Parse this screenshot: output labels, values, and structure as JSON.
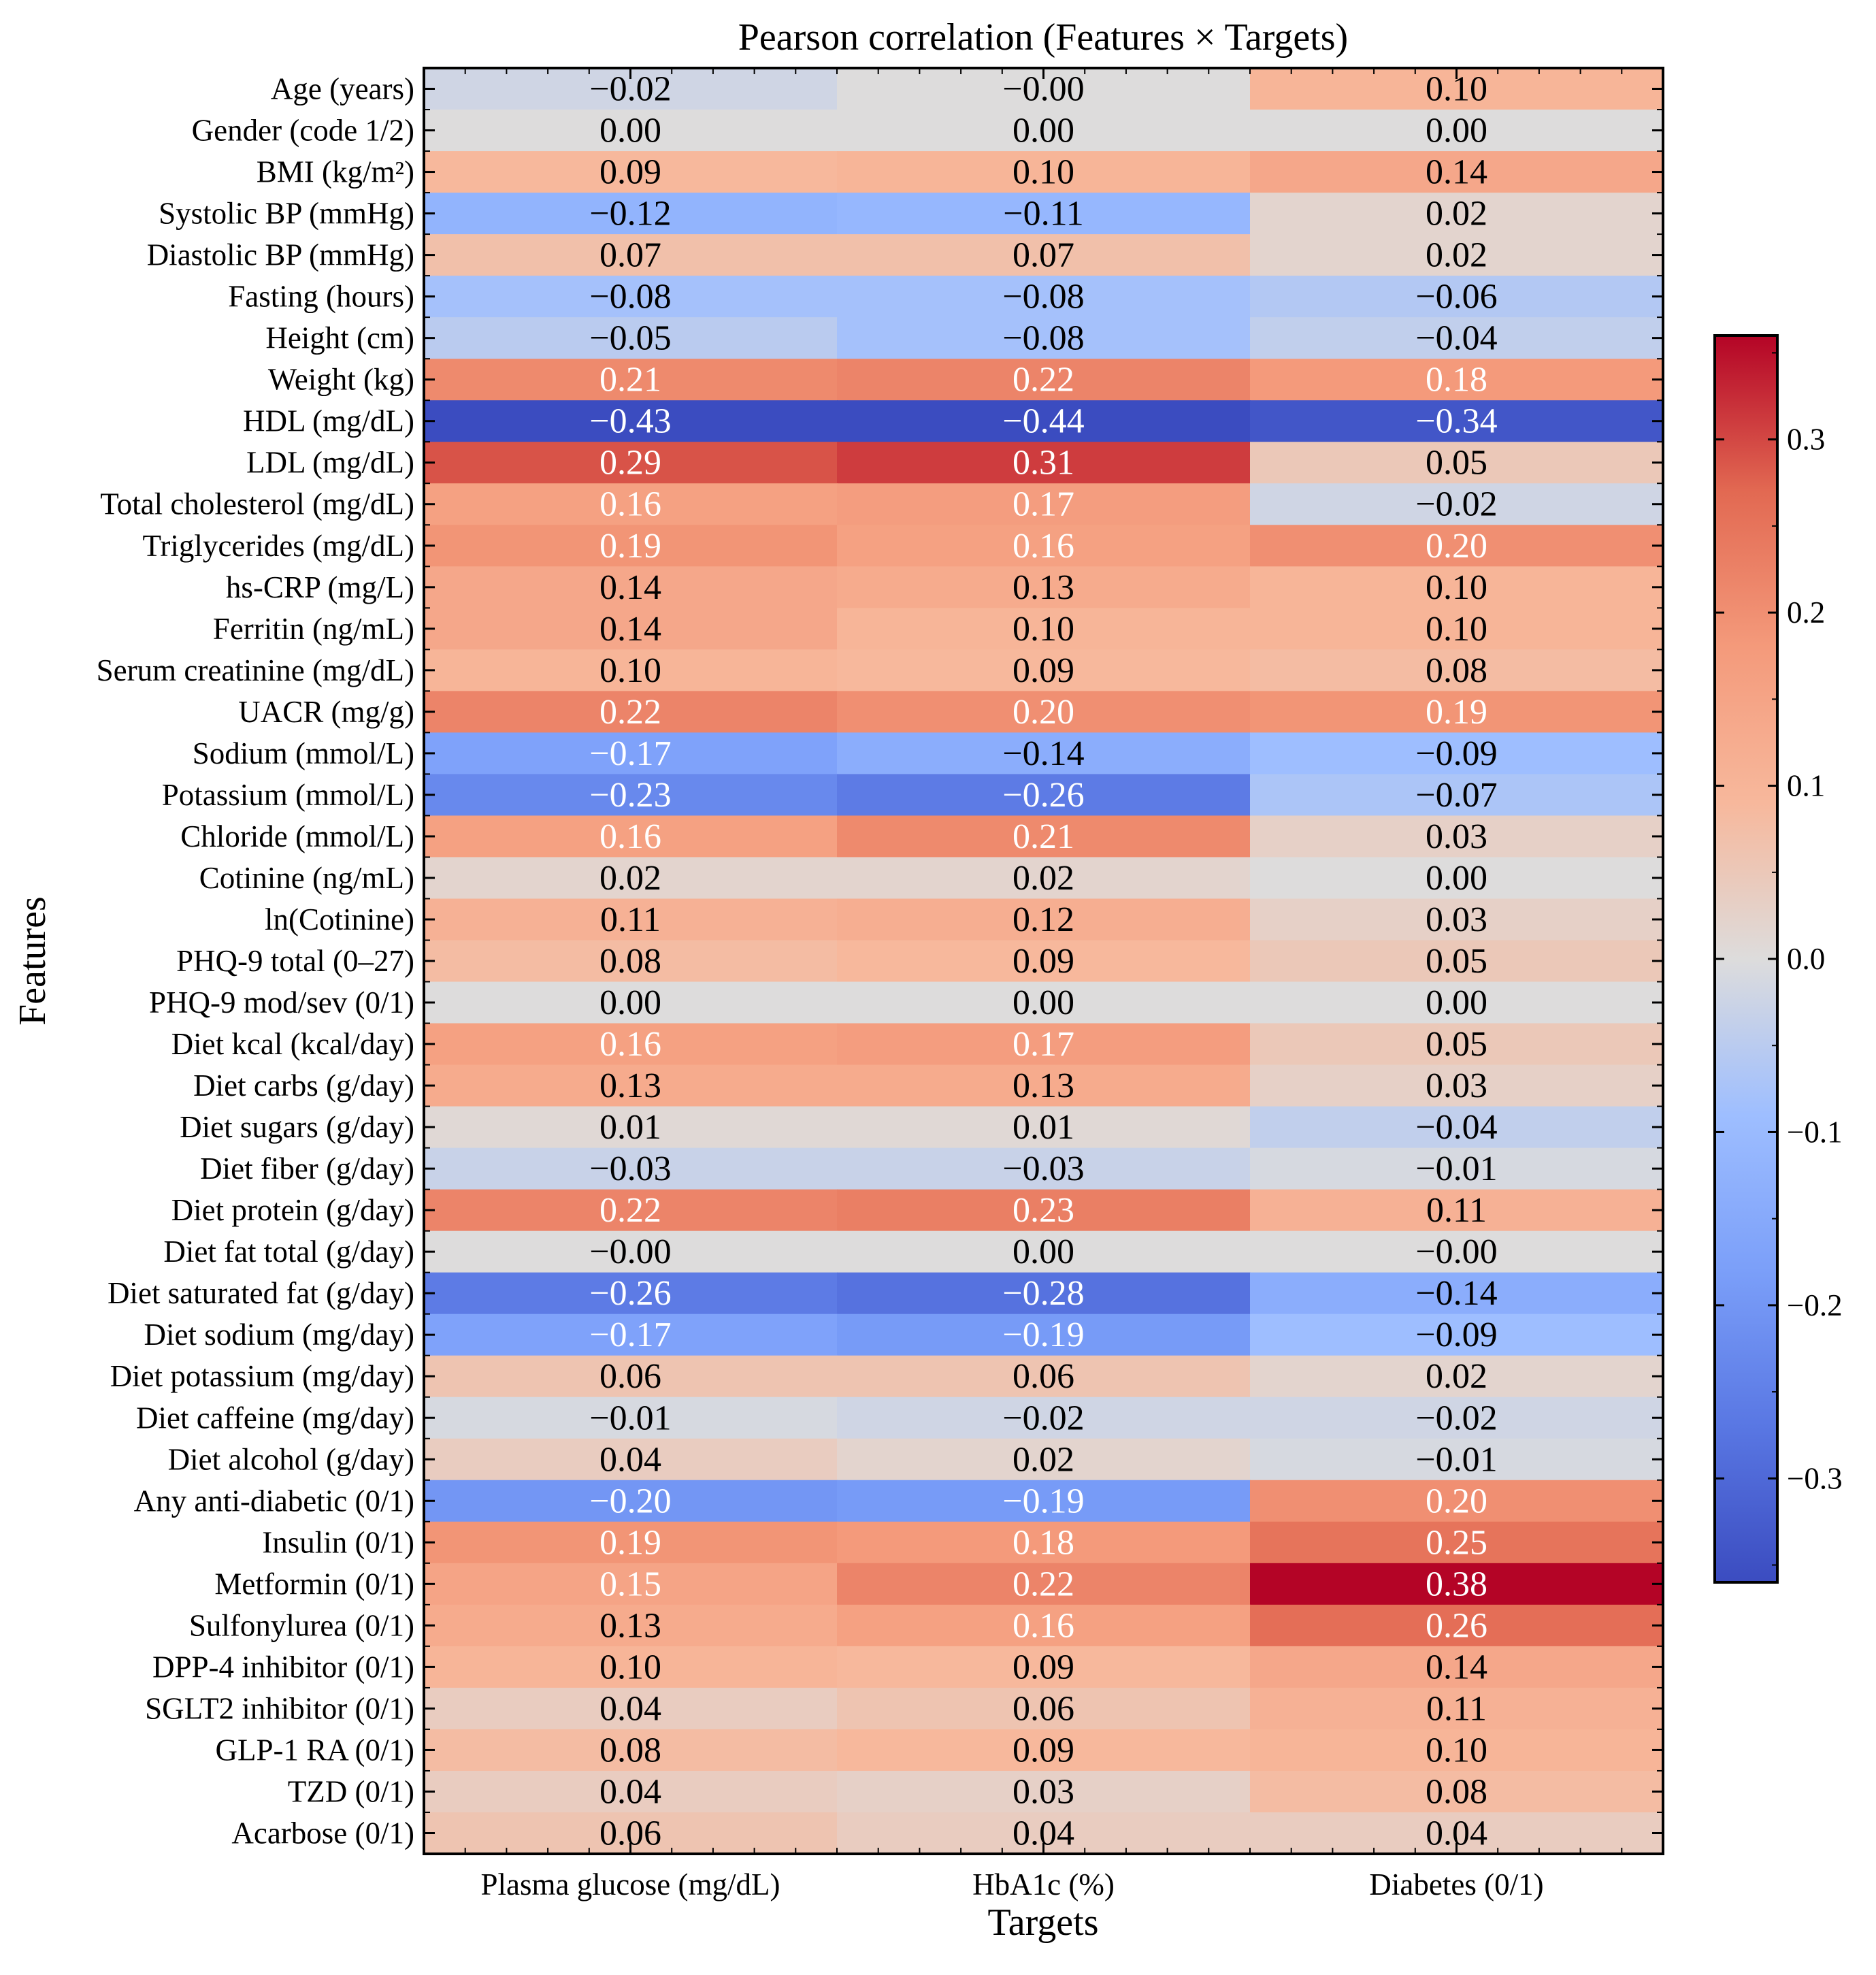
{
  "chart_data": {
    "type": "heatmap",
    "title": "Pearson correlation (Features × Targets)",
    "xlabel": "Targets",
    "ylabel": "Features",
    "x_categories": [
      "Plasma glucose (mg/dL)",
      "HbA1c (%)",
      "Diabetes (0/1)"
    ],
    "y_categories": [
      "Age (years)",
      "Gender (code 1/2)",
      "BMI (kg/m²)",
      "Systolic BP (mmHg)",
      "Diastolic BP (mmHg)",
      "Fasting (hours)",
      "Height (cm)",
      "Weight (kg)",
      "HDL (mg/dL)",
      "LDL (mg/dL)",
      "Total cholesterol (mg/dL)",
      "Triglycerides (mg/dL)",
      "hs-CRP (mg/L)",
      "Ferritin (ng/mL)",
      "Serum creatinine (mg/dL)",
      "UACR (mg/g)",
      "Sodium (mmol/L)",
      "Potassium (mmol/L)",
      "Chloride (mmol/L)",
      "Cotinine (ng/mL)",
      "ln(Cotinine)",
      "PHQ-9 total (0–27)",
      "PHQ-9 mod/sev (0/1)",
      "Diet kcal (kcal/day)",
      "Diet carbs (g/day)",
      "Diet sugars (g/day)",
      "Diet fiber (g/day)",
      "Diet protein (g/day)",
      "Diet fat total (g/day)",
      "Diet saturated fat (g/day)",
      "Diet sodium (mg/day)",
      "Diet potassium (mg/day)",
      "Diet caffeine (mg/day)",
      "Diet alcohol (g/day)",
      "Any anti-diabetic (0/1)",
      "Insulin (0/1)",
      "Metformin (0/1)",
      "Sulfonylurea (0/1)",
      "DPP-4 inhibitor (0/1)",
      "SGLT2 inhibitor (0/1)",
      "GLP-1 RA (0/1)",
      "TZD (0/1)",
      "Acarbose (0/1)"
    ],
    "values": [
      [
        -0.02,
        -0.0,
        0.1
      ],
      [
        0.0,
        0.0,
        0.0
      ],
      [
        0.09,
        0.1,
        0.14
      ],
      [
        -0.12,
        -0.11,
        0.02
      ],
      [
        0.07,
        0.07,
        0.02
      ],
      [
        -0.08,
        -0.08,
        -0.06
      ],
      [
        -0.05,
        -0.08,
        -0.04
      ],
      [
        0.21,
        0.22,
        0.18
      ],
      [
        -0.43,
        -0.44,
        -0.34
      ],
      [
        0.29,
        0.31,
        0.05
      ],
      [
        0.16,
        0.17,
        -0.02
      ],
      [
        0.19,
        0.16,
        0.2
      ],
      [
        0.14,
        0.13,
        0.1
      ],
      [
        0.14,
        0.1,
        0.1
      ],
      [
        0.1,
        0.09,
        0.08
      ],
      [
        0.22,
        0.2,
        0.19
      ],
      [
        -0.17,
        -0.14,
        -0.09
      ],
      [
        -0.23,
        -0.26,
        -0.07
      ],
      [
        0.16,
        0.21,
        0.03
      ],
      [
        0.02,
        0.02,
        0.0
      ],
      [
        0.11,
        0.12,
        0.03
      ],
      [
        0.08,
        0.09,
        0.05
      ],
      [
        0.0,
        0.0,
        0.0
      ],
      [
        0.16,
        0.17,
        0.05
      ],
      [
        0.13,
        0.13,
        0.03
      ],
      [
        0.01,
        0.01,
        -0.04
      ],
      [
        -0.03,
        -0.03,
        -0.01
      ],
      [
        0.22,
        0.23,
        0.11
      ],
      [
        -0.0,
        0.0,
        -0.0
      ],
      [
        -0.26,
        -0.28,
        -0.14
      ],
      [
        -0.17,
        -0.19,
        -0.09
      ],
      [
        0.06,
        0.06,
        0.02
      ],
      [
        -0.01,
        -0.02,
        -0.02
      ],
      [
        0.04,
        0.02,
        -0.01
      ],
      [
        -0.2,
        -0.19,
        0.2
      ],
      [
        0.19,
        0.18,
        0.25
      ],
      [
        0.15,
        0.22,
        0.38
      ],
      [
        0.13,
        0.16,
        0.26
      ],
      [
        0.1,
        0.09,
        0.14
      ],
      [
        0.04,
        0.06,
        0.11
      ],
      [
        0.08,
        0.09,
        0.1
      ],
      [
        0.04,
        0.03,
        0.08
      ],
      [
        0.06,
        0.04,
        0.04
      ]
    ],
    "value_labels": [
      [
        "−0.02",
        "−0.00",
        "0.10"
      ],
      [
        "0.00",
        "0.00",
        "0.00"
      ],
      [
        "0.09",
        "0.10",
        "0.14"
      ],
      [
        "−0.12",
        "−0.11",
        "0.02"
      ],
      [
        "0.07",
        "0.07",
        "0.02"
      ],
      [
        "−0.08",
        "−0.08",
        "−0.06"
      ],
      [
        "−0.05",
        "−0.08",
        "−0.04"
      ],
      [
        "0.21",
        "0.22",
        "0.18"
      ],
      [
        "−0.43",
        "−0.44",
        "−0.34"
      ],
      [
        "0.29",
        "0.31",
        "0.05"
      ],
      [
        "0.16",
        "0.17",
        "−0.02"
      ],
      [
        "0.19",
        "0.16",
        "0.20"
      ],
      [
        "0.14",
        "0.13",
        "0.10"
      ],
      [
        "0.14",
        "0.10",
        "0.10"
      ],
      [
        "0.10",
        "0.09",
        "0.08"
      ],
      [
        "0.22",
        "0.20",
        "0.19"
      ],
      [
        "−0.17",
        "−0.14",
        "−0.09"
      ],
      [
        "−0.23",
        "−0.26",
        "−0.07"
      ],
      [
        "0.16",
        "0.21",
        "0.03"
      ],
      [
        "0.02",
        "0.02",
        "0.00"
      ],
      [
        "0.11",
        "0.12",
        "0.03"
      ],
      [
        "0.08",
        "0.09",
        "0.05"
      ],
      [
        "0.00",
        "0.00",
        "0.00"
      ],
      [
        "0.16",
        "0.17",
        "0.05"
      ],
      [
        "0.13",
        "0.13",
        "0.03"
      ],
      [
        "0.01",
        "0.01",
        "−0.04"
      ],
      [
        "−0.03",
        "−0.03",
        "−0.01"
      ],
      [
        "0.22",
        "0.23",
        "0.11"
      ],
      [
        "−0.00",
        "0.00",
        "−0.00"
      ],
      [
        "−0.26",
        "−0.28",
        "−0.14"
      ],
      [
        "−0.17",
        "−0.19",
        "−0.09"
      ],
      [
        "0.06",
        "0.06",
        "0.02"
      ],
      [
        "−0.01",
        "−0.02",
        "−0.02"
      ],
      [
        "0.04",
        "0.02",
        "−0.01"
      ],
      [
        "−0.20",
        "−0.19",
        "0.20"
      ],
      [
        "0.19",
        "0.18",
        "0.25"
      ],
      [
        "0.15",
        "0.22",
        "0.38"
      ],
      [
        "0.13",
        "0.16",
        "0.26"
      ],
      [
        "0.10",
        "0.09",
        "0.14"
      ],
      [
        "0.04",
        "0.06",
        "0.11"
      ],
      [
        "0.08",
        "0.09",
        "0.10"
      ],
      [
        "0.04",
        "0.03",
        "0.08"
      ],
      [
        "0.06",
        "0.04",
        "0.04"
      ]
    ],
    "colormap": "coolwarm",
    "color_range": [
      -0.36,
      0.36
    ],
    "colorbar_ticks": [
      0.3,
      0.2,
      0.1,
      0.0,
      -0.1,
      -0.2,
      -0.3
    ],
    "colorbar_tick_labels": [
      "0.3",
      "0.2",
      "0.1",
      "0.0",
      "−0.1",
      "−0.2",
      "−0.3"
    ],
    "colorbar_position": "right",
    "grid": false
  }
}
